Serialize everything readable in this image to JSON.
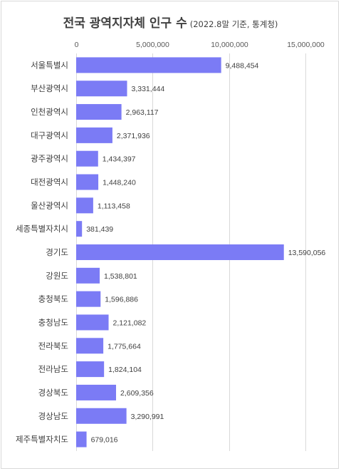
{
  "chart_data": {
    "type": "bar",
    "orientation": "horizontal",
    "title": "전국 광역지자체 인구 수",
    "subtitle": "(2022.8말 기준, 통계청)",
    "categories": [
      "서울특별시",
      "부산광역시",
      "인천광역시",
      "대구광역시",
      "광주광역시",
      "대전광역시",
      "울산광역시",
      "세종특별자치시",
      "경기도",
      "강원도",
      "충청북도",
      "충청남도",
      "전라북도",
      "전라남도",
      "경상북도",
      "경상남도",
      "제주특별자치도"
    ],
    "values": [
      9488454,
      3331444,
      2963117,
      2371936,
      1434397,
      1448240,
      1113458,
      381439,
      13590056,
      1538801,
      1596886,
      2121082,
      1775664,
      1824104,
      2609356,
      3290991,
      679016
    ],
    "value_labels": [
      "9,488,454",
      "3,331,444",
      "2,963,117",
      "2,371,936",
      "1,434,397",
      "1,448,240",
      "1,113,458",
      "381,439",
      "13,590,056",
      "1,538,801",
      "1,596,886",
      "2,121,082",
      "1,775,664",
      "1,824,104",
      "2,609,356",
      "3,290,991",
      "679,016"
    ],
    "x_ticks": [
      0,
      5000000,
      10000000,
      15000000
    ],
    "x_tick_labels": [
      "0",
      "5,000,000",
      "10,000,000",
      "15,000,000"
    ],
    "xlim": [
      0,
      15000000
    ],
    "xaxis_position": "top",
    "grid": true,
    "bar_color": "#7b7bf5",
    "xlabel": "",
    "ylabel": ""
  }
}
